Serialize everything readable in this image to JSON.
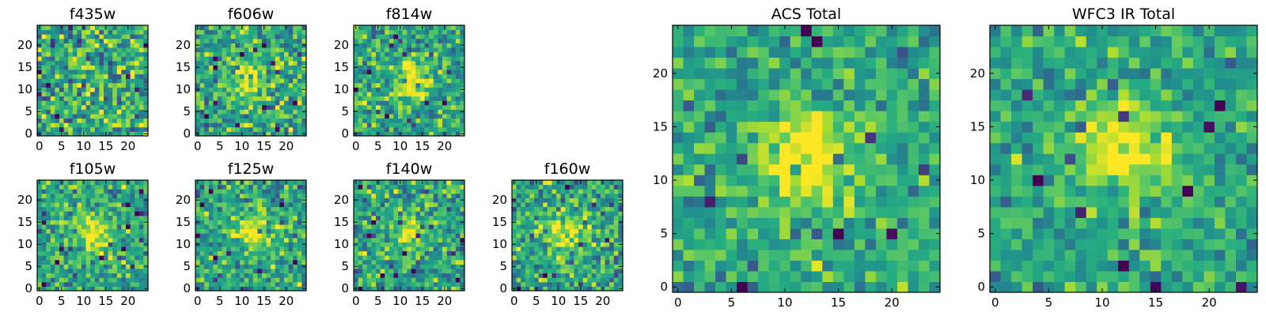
{
  "chart_data": [
    {
      "type": "heatmap",
      "title": "f435w",
      "xlim": [
        0,
        24
      ],
      "ylim": [
        0,
        24
      ],
      "xticks": [
        0,
        5,
        10,
        15,
        20
      ],
      "yticks": [
        0,
        5,
        10,
        15,
        20
      ],
      "colormap": "viridis",
      "source_peak": [
        12,
        13
      ],
      "source_strength": 0.12,
      "noise_level": 0.55,
      "seed": 11
    },
    {
      "type": "heatmap",
      "title": "f606w",
      "xlim": [
        0,
        24
      ],
      "ylim": [
        0,
        24
      ],
      "xticks": [
        0,
        5,
        10,
        15,
        20
      ],
      "yticks": [
        0,
        5,
        10,
        15,
        20
      ],
      "colormap": "viridis",
      "source_peak": [
        12,
        12
      ],
      "source_strength": 0.55,
      "noise_level": 0.45,
      "seed": 23
    },
    {
      "type": "heatmap",
      "title": "f814w",
      "xlim": [
        0,
        24
      ],
      "ylim": [
        0,
        24
      ],
      "xticks": [
        0,
        5,
        10,
        15,
        20
      ],
      "yticks": [
        0,
        5,
        10,
        15,
        20
      ],
      "colormap": "viridis",
      "source_peak": [
        13,
        12
      ],
      "source_strength": 0.6,
      "noise_level": 0.42,
      "seed": 37
    },
    {
      "type": "heatmap",
      "title": "f105w",
      "xlim": [
        0,
        24
      ],
      "ylim": [
        0,
        24
      ],
      "xticks": [
        0,
        5,
        10,
        15,
        20
      ],
      "yticks": [
        0,
        5,
        10,
        15,
        20
      ],
      "colormap": "viridis",
      "source_peak": [
        12,
        12
      ],
      "source_strength": 0.55,
      "noise_level": 0.4,
      "seed": 41
    },
    {
      "type": "heatmap",
      "title": "f125w",
      "xlim": [
        0,
        24
      ],
      "ylim": [
        0,
        24
      ],
      "xticks": [
        0,
        5,
        10,
        15,
        20
      ],
      "yticks": [
        0,
        5,
        10,
        15,
        20
      ],
      "colormap": "viridis",
      "source_peak": [
        12,
        13
      ],
      "source_strength": 0.5,
      "noise_level": 0.42,
      "seed": 53
    },
    {
      "type": "heatmap",
      "title": "f140w",
      "xlim": [
        0,
        24
      ],
      "ylim": [
        0,
        24
      ],
      "xticks": [
        0,
        5,
        10,
        15,
        20
      ],
      "yticks": [
        0,
        5,
        10,
        15,
        20
      ],
      "colormap": "viridis",
      "source_peak": [
        12,
        12
      ],
      "source_strength": 0.45,
      "noise_level": 0.45,
      "seed": 67
    },
    {
      "type": "heatmap",
      "title": "f160w",
      "xlim": [
        0,
        24
      ],
      "ylim": [
        0,
        24
      ],
      "xticks": [
        0,
        5,
        10,
        15,
        20
      ],
      "yticks": [
        0,
        5,
        10,
        15,
        20
      ],
      "colormap": "viridis",
      "source_peak": [
        12,
        13
      ],
      "source_strength": 0.5,
      "noise_level": 0.45,
      "seed": 79
    },
    {
      "type": "heatmap",
      "title": "ACS Total",
      "xlim": [
        0,
        24
      ],
      "ylim": [
        0,
        24
      ],
      "xticks": [
        0,
        5,
        10,
        15,
        20
      ],
      "yticks": [
        0,
        5,
        10,
        15,
        20
      ],
      "colormap": "viridis",
      "source_peak": [
        12,
        12
      ],
      "source_strength": 0.7,
      "noise_level": 0.35,
      "seed": 97
    },
    {
      "type": "heatmap",
      "title": "WFC3 IR Total",
      "xlim": [
        0,
        24
      ],
      "ylim": [
        0,
        24
      ],
      "xticks": [
        0,
        5,
        10,
        15,
        20
      ],
      "yticks": [
        0,
        5,
        10,
        15,
        20
      ],
      "colormap": "viridis",
      "source_peak": [
        12,
        13
      ],
      "source_strength": 0.65,
      "noise_level": 0.33,
      "seed": 113
    }
  ]
}
